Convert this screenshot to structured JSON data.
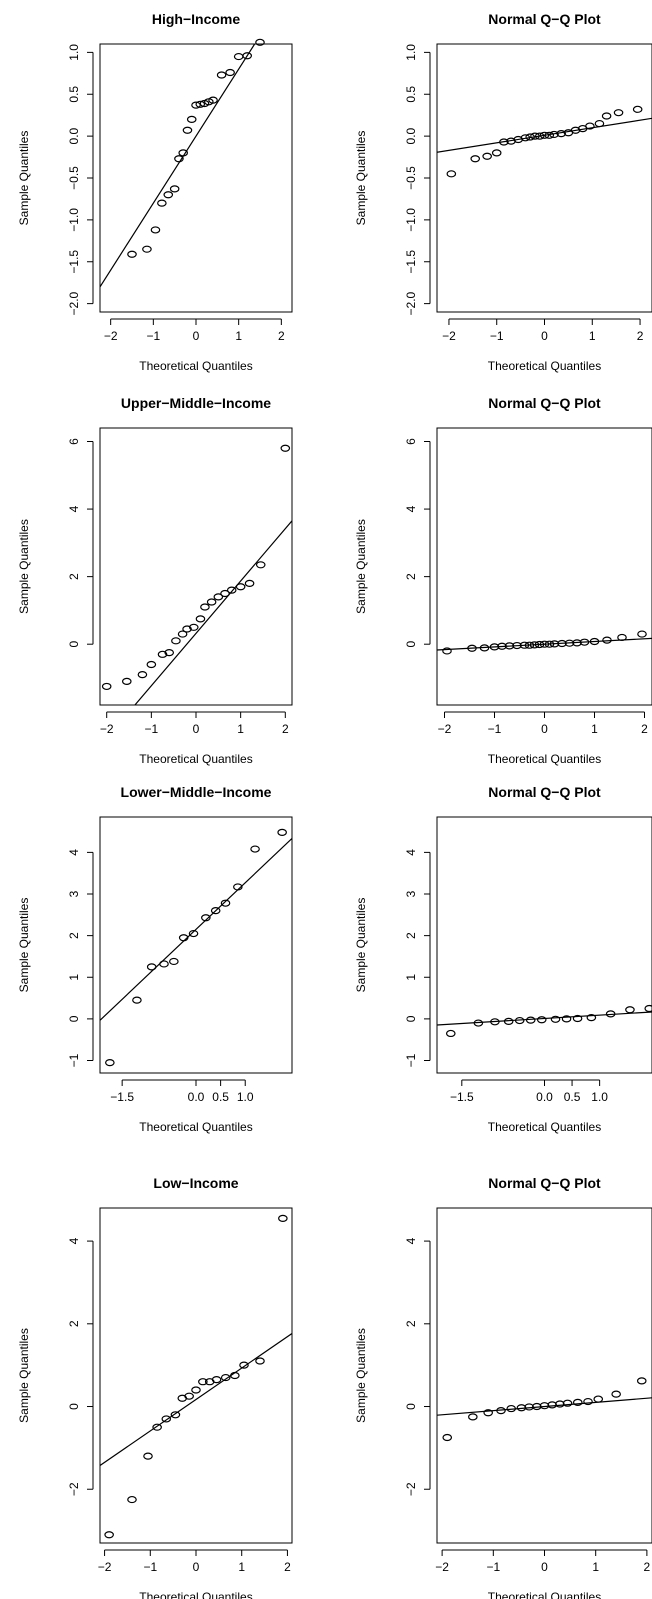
{
  "chart_data": [
    {
      "type": "scatter",
      "title": "High−Income",
      "xlabel": "Theoretical Quantiles",
      "ylabel": "Sample Quantiles",
      "xlim": [
        -2.25,
        2.25
      ],
      "ylim": [
        -2.1,
        1.1
      ],
      "xticks": [
        -2,
        -1,
        0,
        1,
        2
      ],
      "xtick_labels": [
        "−2",
        "−1",
        "0",
        "1",
        "2"
      ],
      "yticks": [
        -2.0,
        -1.5,
        -1.0,
        -0.5,
        0.0,
        0.5,
        1.0
      ],
      "ytick_labels": [
        "−2.0",
        "−1.5",
        "−1.0",
        "−0.5",
        "0.0",
        "0.5",
        "1.0"
      ],
      "points": [
        [
          -1.5,
          -1.41
        ],
        [
          -1.15,
          -1.35
        ],
        [
          -0.95,
          -1.12
        ],
        [
          -0.8,
          -0.8
        ],
        [
          -0.65,
          -0.7
        ],
        [
          -0.5,
          -0.63
        ],
        [
          -0.4,
          -0.27
        ],
        [
          -0.3,
          -0.2
        ],
        [
          -0.2,
          0.07
        ],
        [
          -0.1,
          0.2
        ],
        [
          0.0,
          0.37
        ],
        [
          0.1,
          0.38
        ],
        [
          0.2,
          0.39
        ],
        [
          0.3,
          0.41
        ],
        [
          0.4,
          0.43
        ],
        [
          0.6,
          0.73
        ],
        [
          0.8,
          0.76
        ],
        [
          1.0,
          0.95
        ],
        [
          1.2,
          0.96
        ],
        [
          1.5,
          1.12
        ]
      ],
      "line": {
        "slope": 0.8,
        "intercept": 0.0
      }
    },
    {
      "type": "scatter",
      "title": "Normal Q−Q Plot",
      "xlabel": "Theoretical Quantiles",
      "ylabel": "Sample Quantiles",
      "xlim": [
        -2.25,
        2.25
      ],
      "ylim": [
        -2.1,
        1.1
      ],
      "xticks": [
        -2,
        -1,
        0,
        1,
        2
      ],
      "xtick_labels": [
        "−2",
        "−1",
        "0",
        "1",
        "2"
      ],
      "yticks": [
        -2.0,
        -1.5,
        -1.0,
        -0.5,
        0.0,
        0.5,
        1.0
      ],
      "ytick_labels": [
        "−2.0",
        "−1.5",
        "−1.0",
        "−0.5",
        "0.0",
        "0.5",
        "1.0"
      ],
      "points": [
        [
          -1.95,
          -0.45
        ],
        [
          -1.45,
          -0.27
        ],
        [
          -1.2,
          -0.24
        ],
        [
          -1.0,
          -0.2
        ],
        [
          -0.85,
          -0.07
        ],
        [
          -0.7,
          -0.06
        ],
        [
          -0.55,
          -0.04
        ],
        [
          -0.4,
          -0.02
        ],
        [
          -0.3,
          -0.01
        ],
        [
          -0.2,
          0.0
        ],
        [
          -0.1,
          0.0
        ],
        [
          0.0,
          0.01
        ],
        [
          0.1,
          0.01
        ],
        [
          0.2,
          0.02
        ],
        [
          0.35,
          0.03
        ],
        [
          0.5,
          0.04
        ],
        [
          0.65,
          0.07
        ],
        [
          0.8,
          0.09
        ],
        [
          0.95,
          0.12
        ],
        [
          1.15,
          0.15
        ],
        [
          1.3,
          0.24
        ],
        [
          1.55,
          0.28
        ],
        [
          1.95,
          0.32
        ]
      ],
      "line": {
        "slope": 0.09,
        "intercept": 0.01
      }
    },
    {
      "type": "scatter",
      "title": "Upper−Middle−Income",
      "xlabel": "Theoretical Quantiles",
      "ylabel": "Sample Quantiles",
      "xlim": [
        -2.15,
        2.15
      ],
      "ylim": [
        -1.8,
        6.4
      ],
      "xticks": [
        -2,
        -1,
        0,
        1,
        2
      ],
      "xtick_labels": [
        "−2",
        "−1",
        "0",
        "1",
        "2"
      ],
      "yticks": [
        0,
        2,
        4,
        6
      ],
      "ytick_labels": [
        "0",
        "2",
        "4",
        "6"
      ],
      "points": [
        [
          -2.0,
          -1.25
        ],
        [
          -1.55,
          -1.1
        ],
        [
          -1.2,
          -0.9
        ],
        [
          -1.0,
          -0.6
        ],
        [
          -0.75,
          -0.3
        ],
        [
          -0.6,
          -0.25
        ],
        [
          -0.45,
          0.1
        ],
        [
          -0.3,
          0.3
        ],
        [
          -0.2,
          0.45
        ],
        [
          -0.05,
          0.5
        ],
        [
          0.1,
          0.75
        ],
        [
          0.2,
          1.1
        ],
        [
          0.35,
          1.25
        ],
        [
          0.5,
          1.4
        ],
        [
          0.65,
          1.5
        ],
        [
          0.8,
          1.6
        ],
        [
          1.0,
          1.7
        ],
        [
          1.2,
          1.8
        ],
        [
          1.45,
          2.35
        ],
        [
          2.0,
          5.8
        ]
      ],
      "line": {
        "slope": 1.55,
        "intercept": 0.32
      }
    },
    {
      "type": "scatter",
      "title": "Normal Q−Q Plot",
      "xlabel": "Theoretical Quantiles",
      "ylabel": "Sample Quantiles",
      "xlim": [
        -2.15,
        2.15
      ],
      "ylim": [
        -1.8,
        6.4
      ],
      "xticks": [
        -2,
        -1,
        0,
        1,
        2
      ],
      "xtick_labels": [
        "−2",
        "−1",
        "0",
        "1",
        "2"
      ],
      "yticks": [
        0,
        2,
        4,
        6
      ],
      "ytick_labels": [
        "0",
        "2",
        "4",
        "6"
      ],
      "points": [
        [
          -1.95,
          -0.2
        ],
        [
          -1.45,
          -0.12
        ],
        [
          -1.2,
          -0.11
        ],
        [
          -1.0,
          -0.08
        ],
        [
          -0.85,
          -0.06
        ],
        [
          -0.7,
          -0.05
        ],
        [
          -0.55,
          -0.04
        ],
        [
          -0.4,
          -0.03
        ],
        [
          -0.3,
          -0.03
        ],
        [
          -0.2,
          -0.02
        ],
        [
          -0.1,
          -0.01
        ],
        [
          0.0,
          0.0
        ],
        [
          0.1,
          0.0
        ],
        [
          0.2,
          0.01
        ],
        [
          0.35,
          0.02
        ],
        [
          0.5,
          0.03
        ],
        [
          0.65,
          0.04
        ],
        [
          0.8,
          0.06
        ],
        [
          1.0,
          0.08
        ],
        [
          1.25,
          0.12
        ],
        [
          1.55,
          0.2
        ],
        [
          1.95,
          0.3
        ]
      ],
      "line": {
        "slope": 0.08,
        "intercept": 0.0
      }
    },
    {
      "type": "scatter",
      "title": "Lower−Middle−Income",
      "xlabel": "Theoretical Quantiles",
      "ylabel": "Sample Quantiles",
      "xlim": [
        -1.95,
        1.95
      ],
      "ylim": [
        -1.3,
        4.85
      ],
      "xticks": [
        -1.5,
        0.0,
        0.5,
        1.0
      ],
      "xtick_labels": [
        "−1.5",
        "0.0",
        "0.5",
        "1.0"
      ],
      "yticks": [
        -1,
        0,
        1,
        2,
        3,
        4
      ],
      "ytick_labels": [
        "−1",
        "0",
        "1",
        "2",
        "3",
        "4"
      ],
      "points": [
        [
          -1.75,
          -1.05
        ],
        [
          -1.2,
          0.45
        ],
        [
          -0.9,
          1.25
        ],
        [
          -0.65,
          1.32
        ],
        [
          -0.45,
          1.38
        ],
        [
          -0.25,
          1.95
        ],
        [
          -0.05,
          2.05
        ],
        [
          0.2,
          2.43
        ],
        [
          0.4,
          2.6
        ],
        [
          0.6,
          2.78
        ],
        [
          0.85,
          3.17
        ],
        [
          1.2,
          4.08
        ],
        [
          1.75,
          4.48
        ]
      ],
      "line": {
        "slope": 1.12,
        "intercept": 2.15
      }
    },
    {
      "type": "scatter",
      "title": "Normal Q−Q Plot",
      "xlabel": "Theoretical Quantiles",
      "ylabel": "Sample Quantiles",
      "xlim": [
        -1.95,
        1.95
      ],
      "ylim": [
        -1.3,
        4.85
      ],
      "xticks": [
        -1.5,
        0.0,
        0.5,
        1.0
      ],
      "xtick_labels": [
        "−1.5",
        "0.0",
        "0.5",
        "1.0"
      ],
      "yticks": [
        -1,
        0,
        1,
        2,
        3,
        4
      ],
      "ytick_labels": [
        "−1",
        "0",
        "1",
        "2",
        "3",
        "4"
      ],
      "points": [
        [
          -1.7,
          -0.35
        ],
        [
          -1.2,
          -0.1
        ],
        [
          -0.9,
          -0.07
        ],
        [
          -0.65,
          -0.06
        ],
        [
          -0.45,
          -0.04
        ],
        [
          -0.25,
          -0.03
        ],
        [
          -0.05,
          -0.02
        ],
        [
          0.2,
          -0.01
        ],
        [
          0.4,
          0.0
        ],
        [
          0.6,
          0.01
        ],
        [
          0.85,
          0.03
        ],
        [
          1.2,
          0.12
        ],
        [
          1.55,
          0.22
        ],
        [
          1.9,
          0.25
        ]
      ],
      "line": {
        "slope": 0.08,
        "intercept": 0.01
      }
    },
    {
      "type": "scatter",
      "title": "Low−Income",
      "xlabel": "Theoretical Quantiles",
      "ylabel": "Sample Quantiles",
      "xlim": [
        -2.1,
        2.1
      ],
      "ylim": [
        -3.3,
        4.8
      ],
      "xticks": [
        -2,
        -1,
        0,
        1,
        2
      ],
      "xtick_labels": [
        "−2",
        "−1",
        "0",
        "1",
        "2"
      ],
      "yticks": [
        -2,
        0,
        2,
        4
      ],
      "ytick_labels": [
        "−2",
        "0",
        "2",
        "4"
      ],
      "points": [
        [
          -1.9,
          -3.1
        ],
        [
          -1.4,
          -2.25
        ],
        [
          -1.05,
          -1.2
        ],
        [
          -0.85,
          -0.5
        ],
        [
          -0.65,
          -0.3
        ],
        [
          -0.45,
          -0.2
        ],
        [
          -0.3,
          0.2
        ],
        [
          -0.15,
          0.25
        ],
        [
          0.0,
          0.4
        ],
        [
          0.15,
          0.6
        ],
        [
          0.3,
          0.6
        ],
        [
          0.45,
          0.65
        ],
        [
          0.65,
          0.7
        ],
        [
          0.85,
          0.75
        ],
        [
          1.05,
          1.0
        ],
        [
          1.4,
          1.1
        ],
        [
          1.9,
          4.55
        ]
      ],
      "line": {
        "slope": 0.76,
        "intercept": 0.17
      }
    },
    {
      "type": "scatter",
      "title": "Normal Q−Q Plot",
      "xlabel": "Theoretical Quantiles",
      "ylabel": "Sample Quantiles",
      "xlim": [
        -2.1,
        2.1
      ],
      "ylim": [
        -3.3,
        4.8
      ],
      "xticks": [
        -2,
        -1,
        0,
        1,
        2
      ],
      "xtick_labels": [
        "−2",
        "−1",
        "0",
        "1",
        "2"
      ],
      "yticks": [
        -2,
        0,
        2,
        4
      ],
      "ytick_labels": [
        "−2",
        "0",
        "2",
        "4"
      ],
      "points": [
        [
          -1.9,
          -0.75
        ],
        [
          -1.4,
          -0.25
        ],
        [
          -1.1,
          -0.15
        ],
        [
          -0.85,
          -0.1
        ],
        [
          -0.65,
          -0.05
        ],
        [
          -0.45,
          -0.03
        ],
        [
          -0.3,
          -0.01
        ],
        [
          -0.15,
          0.0
        ],
        [
          0.0,
          0.02
        ],
        [
          0.15,
          0.04
        ],
        [
          0.3,
          0.06
        ],
        [
          0.45,
          0.08
        ],
        [
          0.65,
          0.1
        ],
        [
          0.85,
          0.12
        ],
        [
          1.05,
          0.18
        ],
        [
          1.4,
          0.3
        ],
        [
          1.9,
          0.62
        ]
      ],
      "line": {
        "slope": 0.1,
        "intercept": 0.0
      }
    }
  ]
}
